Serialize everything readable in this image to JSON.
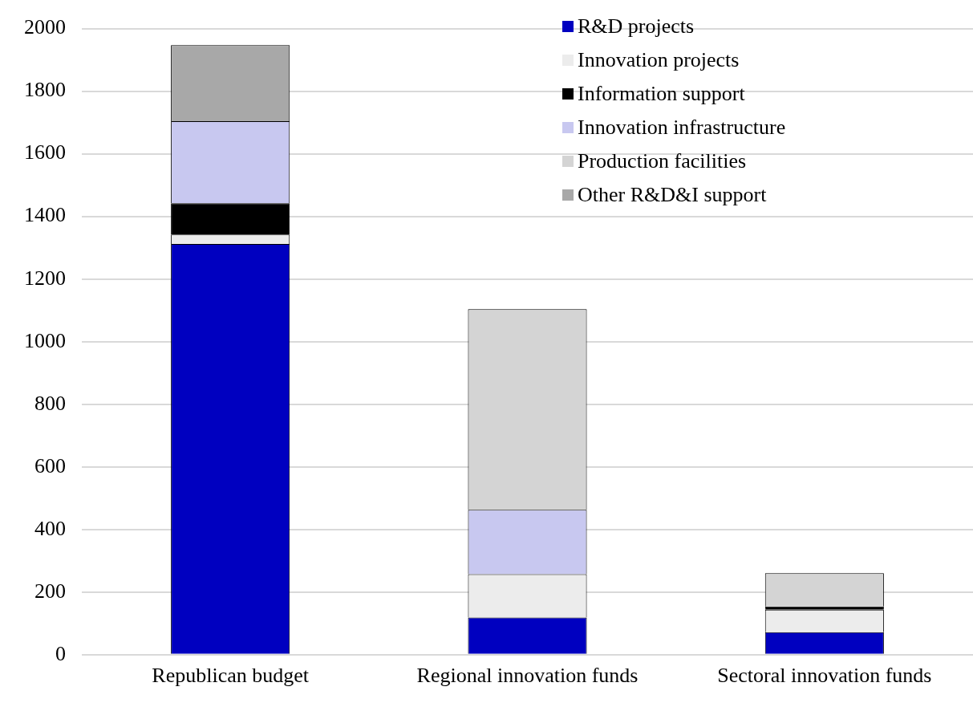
{
  "chart_data": {
    "type": "bar",
    "stacked": true,
    "categories": [
      "Republican budget",
      "Regional innovation funds",
      "Sectoral innovation funds"
    ],
    "series": [
      {
        "name": "R&D projects",
        "color": "#0000c0",
        "values": [
          1312,
          119,
          72
        ]
      },
      {
        "name": "Innovation projects",
        "color": "#ececec",
        "values": [
          30,
          138,
          72
        ]
      },
      {
        "name": "Information support",
        "color": "#000000",
        "values": [
          100,
          0,
          10
        ]
      },
      {
        "name": "Innovation infrastructure",
        "color": "#c8c8f0",
        "values": [
          262,
          206,
          0
        ]
      },
      {
        "name": "Production facilities",
        "color": "#d4d4d4",
        "values": [
          0,
          641,
          106
        ]
      },
      {
        "name": "Other R&D&I support",
        "color": "#a8a8a8",
        "values": [
          243,
          0,
          0
        ]
      }
    ],
    "ylim": [
      0,
      2000
    ],
    "yticks": [
      0,
      200,
      400,
      600,
      800,
      1000,
      1200,
      1400,
      1600,
      1800,
      2000
    ],
    "grid": "y",
    "legend": "top right"
  }
}
